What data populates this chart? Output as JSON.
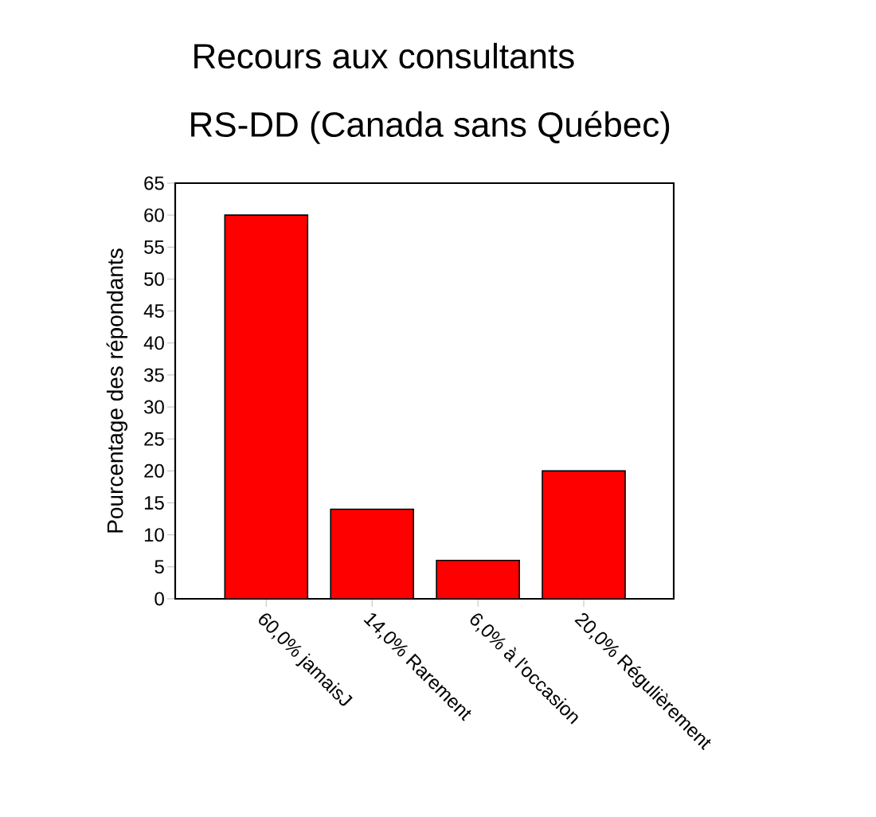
{
  "chart_data": {
    "type": "bar",
    "title": "Recours aux consultants",
    "subtitle": "RS-DD (Canada sans Québec)",
    "ylabel": "Pourcentage des répondants",
    "categories": [
      "60,0% jamaisJ",
      "14,0% Rarement",
      "6,0% à l'occasion",
      "20,0% Régulièrement"
    ],
    "values": [
      60,
      14,
      6,
      20
    ],
    "color": "#ff0000",
    "ylim": [
      0,
      65
    ],
    "yticks": [
      0,
      5,
      10,
      15,
      20,
      25,
      30,
      35,
      40,
      45,
      50,
      55,
      60,
      65
    ],
    "grid": false
  }
}
